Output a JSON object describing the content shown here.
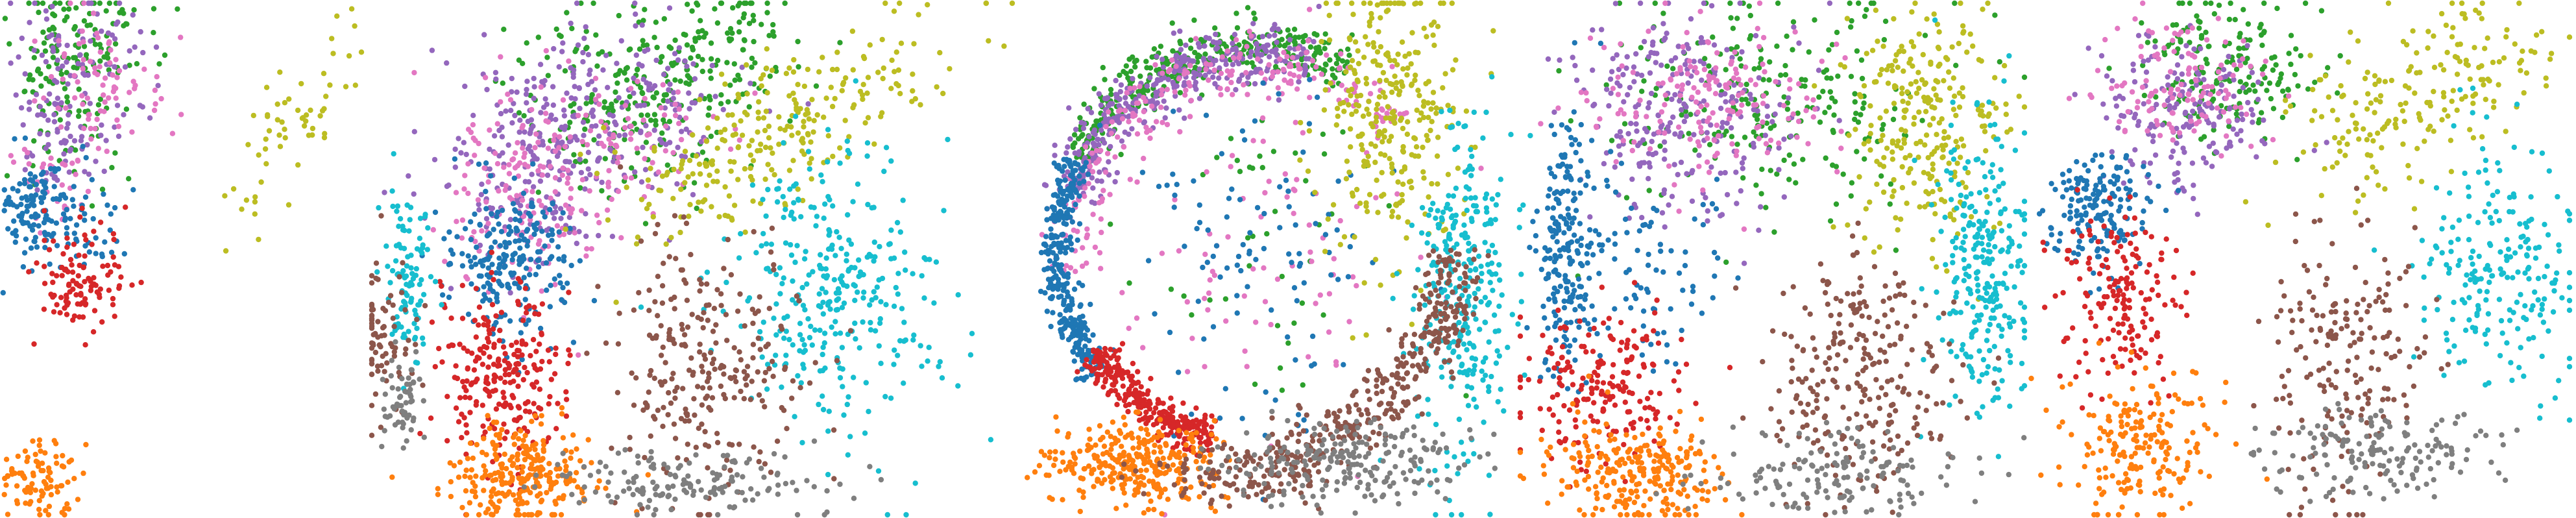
{
  "chart_data": [
    {
      "type": "scatter",
      "title": "",
      "xlabel": "",
      "ylabel": "",
      "grid": false,
      "legend": "none",
      "axes_visible": false,
      "palette": [
        "#1f77b4",
        "#ff7f0e",
        "#2ca02c",
        "#d62728",
        "#9467bd",
        "#8c564b",
        "#e377c2",
        "#7f7f7f",
        "#bcbd22",
        "#17becf"
      ],
      "series": [
        {
          "color": "#2ca02c",
          "seed": 11,
          "clusters": [
            {
              "cx": 0.22,
              "cy": 0.06,
              "sx": 0.1,
              "sy": 0.05,
              "n": 90
            },
            {
              "cx": 0.18,
              "cy": 0.2,
              "sx": 0.06,
              "sy": 0.08,
              "n": 70
            }
          ]
        },
        {
          "color": "#9467bd",
          "seed": 12,
          "clusters": [
            {
              "cx": 0.2,
              "cy": 0.14,
              "sx": 0.1,
              "sy": 0.08,
              "n": 110
            },
            {
              "cx": 0.16,
              "cy": 0.28,
              "sx": 0.05,
              "sy": 0.05,
              "n": 40
            }
          ]
        },
        {
          "color": "#e377c2",
          "seed": 13,
          "clusters": [
            {
              "cx": 0.24,
              "cy": 0.16,
              "sx": 0.1,
              "sy": 0.07,
              "n": 80
            },
            {
              "cx": 0.14,
              "cy": 0.36,
              "sx": 0.06,
              "sy": 0.04,
              "n": 30
            }
          ]
        },
        {
          "color": "#1f77b4",
          "seed": 14,
          "clusters": [
            {
              "cx": 0.08,
              "cy": 0.4,
              "sx": 0.06,
              "sy": 0.05,
              "n": 110
            },
            {
              "cx": 0.2,
              "cy": 0.44,
              "sx": 0.08,
              "sy": 0.05,
              "n": 60
            }
          ]
        },
        {
          "color": "#d62728",
          "seed": 15,
          "clusters": [
            {
              "cx": 0.22,
              "cy": 0.54,
              "sx": 0.07,
              "sy": 0.06,
              "n": 110
            }
          ]
        },
        {
          "color": "#bcbd22",
          "seed": 16,
          "clusters": [
            {
              "cx": 0.8,
              "cy": 0.24,
              "sx": 0.14,
              "sy": 0.05,
              "n": 60,
              "rot": -0.9
            }
          ]
        },
        {
          "color": "#ff7f0e",
          "seed": 17,
          "clusters": [
            {
              "cx": 0.1,
              "cy": 0.93,
              "sx": 0.06,
              "sy": 0.05,
              "n": 100
            }
          ]
        }
      ]
    },
    {
      "type": "scatter",
      "title": "",
      "xlabel": "",
      "ylabel": "",
      "grid": false,
      "legend": "none",
      "axes_visible": false,
      "series": [
        {
          "color": "#2ca02c",
          "seed": 21,
          "clusters": [
            {
              "cx": 0.38,
              "cy": 0.18,
              "sx": 0.1,
              "sy": 0.1,
              "n": 220
            },
            {
              "cx": 0.54,
              "cy": 0.08,
              "sx": 0.06,
              "sy": 0.06,
              "n": 80
            }
          ]
        },
        {
          "color": "#9467bd",
          "seed": 22,
          "clusters": [
            {
              "cx": 0.22,
              "cy": 0.3,
              "sx": 0.08,
              "sy": 0.1,
              "n": 240
            },
            {
              "cx": 0.4,
              "cy": 0.2,
              "sx": 0.08,
              "sy": 0.08,
              "n": 120
            }
          ]
        },
        {
          "color": "#e377c2",
          "seed": 23,
          "clusters": [
            {
              "cx": 0.2,
              "cy": 0.36,
              "sx": 0.07,
              "sy": 0.1,
              "n": 150
            },
            {
              "cx": 0.36,
              "cy": 0.26,
              "sx": 0.08,
              "sy": 0.07,
              "n": 80
            }
          ]
        },
        {
          "color": "#1f77b4",
          "seed": 24,
          "clusters": [
            {
              "cx": 0.17,
              "cy": 0.5,
              "sx": 0.05,
              "sy": 0.07,
              "n": 220
            }
          ]
        },
        {
          "color": "#d62728",
          "seed": 25,
          "clusters": [
            {
              "cx": 0.16,
              "cy": 0.72,
              "sx": 0.05,
              "sy": 0.09,
              "n": 240
            }
          ]
        },
        {
          "color": "#ff7f0e",
          "seed": 26,
          "clusters": [
            {
              "cx": 0.2,
              "cy": 0.92,
              "sx": 0.06,
              "sy": 0.05,
              "n": 260
            }
          ]
        },
        {
          "color": "#bcbd22",
          "seed": 27,
          "clusters": [
            {
              "cx": 0.62,
              "cy": 0.24,
              "sx": 0.16,
              "sy": 0.06,
              "n": 260,
              "rot": -0.6
            }
          ]
        },
        {
          "color": "#17becf",
          "seed": 28,
          "clusters": [
            {
              "cx": 0.72,
              "cy": 0.56,
              "sx": 0.09,
              "sy": 0.14,
              "n": 320
            },
            {
              "cx": 0.01,
              "cy": 0.54,
              "sx": 0.02,
              "sy": 0.08,
              "n": 100
            }
          ]
        },
        {
          "color": "#8c564b",
          "seed": 29,
          "clusters": [
            {
              "cx": 0.5,
              "cy": 0.72,
              "sx": 0.08,
              "sy": 0.12,
              "n": 260
            },
            {
              "cx": -0.03,
              "cy": 0.66,
              "sx": 0.025,
              "sy": 0.08,
              "n": 80
            }
          ]
        },
        {
          "color": "#7f7f7f",
          "seed": 30,
          "clusters": [
            {
              "cx": 0.48,
              "cy": 0.94,
              "sx": 0.12,
              "sy": 0.03,
              "n": 150
            },
            {
              "cx": 0.0,
              "cy": 0.78,
              "sx": 0.02,
              "sy": 0.04,
              "n": 60
            }
          ]
        }
      ]
    },
    {
      "type": "scatter",
      "title": "",
      "xlabel": "",
      "ylabel": "",
      "grid": false,
      "legend": "none",
      "axes_visible": false,
      "series": [
        {
          "color": "#2ca02c",
          "seed": 31,
          "clusters": [
            {
              "ring": true,
              "cx": 0.44,
              "cy": 0.48,
              "r": 0.4,
              "width": 0.05,
              "a0": 3.6,
              "a1": 5.2,
              "n": 340
            },
            {
              "cx": 0.44,
              "cy": 0.45,
              "sx": 0.16,
              "sy": 0.18,
              "n": 50
            }
          ]
        },
        {
          "color": "#9467bd",
          "seed": 32,
          "clusters": [
            {
              "ring": true,
              "cx": 0.44,
              "cy": 0.48,
              "r": 0.38,
              "width": 0.06,
              "a0": 3.4,
              "a1": 5.0,
              "n": 360
            }
          ]
        },
        {
          "color": "#e377c2",
          "seed": 33,
          "clusters": [
            {
              "ring": true,
              "cx": 0.44,
              "cy": 0.48,
              "r": 0.36,
              "width": 0.06,
              "a0": 3.0,
              "a1": 5.6,
              "n": 220
            },
            {
              "cx": 0.44,
              "cy": 0.46,
              "sx": 0.16,
              "sy": 0.18,
              "n": 90
            }
          ]
        },
        {
          "color": "#1f77b4",
          "seed": 34,
          "clusters": [
            {
              "ring": true,
              "cx": 0.44,
              "cy": 0.48,
              "r": 0.4,
              "width": 0.035,
              "a0": 2.5,
              "a1": 3.6,
              "n": 320
            },
            {
              "cx": 0.44,
              "cy": 0.5,
              "sx": 0.14,
              "sy": 0.16,
              "n": 110
            }
          ]
        },
        {
          "color": "#d62728",
          "seed": 35,
          "clusters": [
            {
              "ring": true,
              "cx": 0.44,
              "cy": 0.48,
              "r": 0.38,
              "width": 0.04,
              "a0": 1.8,
              "a1": 2.6,
              "n": 280
            }
          ]
        },
        {
          "color": "#ff7f0e",
          "seed": 36,
          "clusters": [
            {
              "cx": 0.2,
              "cy": 0.9,
              "sx": 0.09,
              "sy": 0.04,
              "n": 300
            }
          ]
        },
        {
          "color": "#bcbd22",
          "seed": 37,
          "clusters": [
            {
              "cx": 0.72,
              "cy": 0.22,
              "sx": 0.07,
              "sy": 0.14,
              "n": 300
            }
          ]
        },
        {
          "color": "#17becf",
          "seed": 38,
          "clusters": [
            {
              "cx": 0.86,
              "cy": 0.56,
              "sx": 0.05,
              "sy": 0.16,
              "n": 300
            }
          ]
        },
        {
          "color": "#8c564b",
          "seed": 39,
          "clusters": [
            {
              "ring": true,
              "cx": 0.44,
              "cy": 0.48,
              "r": 0.4,
              "width": 0.06,
              "a0": 0.0,
              "a1": 1.5,
              "n": 330
            },
            {
              "cx": 0.42,
              "cy": 0.92,
              "sx": 0.1,
              "sy": 0.03,
              "n": 120
            }
          ]
        },
        {
          "color": "#7f7f7f",
          "seed": 40,
          "clusters": [
            {
              "cx": 0.62,
              "cy": 0.9,
              "sx": 0.12,
              "sy": 0.04,
              "n": 220
            }
          ]
        }
      ]
    },
    {
      "type": "scatter",
      "title": "",
      "xlabel": "",
      "ylabel": "",
      "grid": false,
      "legend": "none",
      "axes_visible": false,
      "series": [
        {
          "color": "#2ca02c",
          "seed": 41,
          "clusters": [
            {
              "cx": 0.48,
              "cy": 0.2,
              "sx": 0.16,
              "sy": 0.12,
              "n": 230
            }
          ]
        },
        {
          "color": "#9467bd",
          "seed": 42,
          "clusters": [
            {
              "cx": 0.28,
              "cy": 0.22,
              "sx": 0.12,
              "sy": 0.1,
              "n": 250
            }
          ]
        },
        {
          "color": "#e377c2",
          "seed": 43,
          "clusters": [
            {
              "cx": 0.34,
              "cy": 0.18,
              "sx": 0.12,
              "sy": 0.08,
              "n": 170
            }
          ]
        },
        {
          "color": "#1f77b4",
          "seed": 44,
          "clusters": [
            {
              "cx": 0.04,
              "cy": 0.46,
              "sx": 0.03,
              "sy": 0.12,
              "n": 200
            },
            {
              "cx": 0.22,
              "cy": 0.52,
              "sx": 0.1,
              "sy": 0.09,
              "n": 90
            }
          ]
        },
        {
          "color": "#d62728",
          "seed": 45,
          "clusters": [
            {
              "cx": 0.12,
              "cy": 0.74,
              "sx": 0.08,
              "sy": 0.07,
              "n": 200
            }
          ]
        },
        {
          "color": "#ff7f0e",
          "seed": 46,
          "clusters": [
            {
              "cx": 0.2,
              "cy": 0.92,
              "sx": 0.09,
              "sy": 0.05,
              "n": 250
            }
          ]
        },
        {
          "color": "#bcbd22",
          "seed": 47,
          "clusters": [
            {
              "cx": 0.8,
              "cy": 0.22,
              "sx": 0.08,
              "sy": 0.12,
              "n": 260
            }
          ]
        },
        {
          "color": "#17becf",
          "seed": 48,
          "clusters": [
            {
              "cx": 0.92,
              "cy": 0.52,
              "sx": 0.05,
              "sy": 0.14,
              "n": 260
            }
          ]
        },
        {
          "color": "#8c564b",
          "seed": 49,
          "clusters": [
            {
              "cx": 0.66,
              "cy": 0.72,
              "sx": 0.1,
              "sy": 0.12,
              "n": 260
            }
          ]
        },
        {
          "color": "#7f7f7f",
          "seed": 50,
          "clusters": [
            {
              "cx": 0.6,
              "cy": 0.92,
              "sx": 0.14,
              "sy": 0.04,
              "n": 150
            }
          ]
        }
      ]
    },
    {
      "type": "scatter",
      "title": "",
      "xlabel": "",
      "ylabel": "",
      "grid": false,
      "legend": "none",
      "axes_visible": false,
      "series": [
        {
          "color": "#2ca02c",
          "seed": 51,
          "clusters": [
            {
              "cx": 0.32,
              "cy": 0.12,
              "sx": 0.08,
              "sy": 0.07,
              "n": 180
            }
          ]
        },
        {
          "color": "#9467bd",
          "seed": 52,
          "clusters": [
            {
              "cx": 0.26,
              "cy": 0.22,
              "sx": 0.08,
              "sy": 0.08,
              "n": 180
            }
          ]
        },
        {
          "color": "#e377c2",
          "seed": 53,
          "clusters": [
            {
              "cx": 0.24,
              "cy": 0.16,
              "sx": 0.08,
              "sy": 0.06,
              "n": 120
            }
          ]
        },
        {
          "color": "#1f77b4",
          "seed": 54,
          "clusters": [
            {
              "cx": 0.08,
              "cy": 0.4,
              "sx": 0.05,
              "sy": 0.06,
              "n": 170
            }
          ]
        },
        {
          "color": "#d62728",
          "seed": 55,
          "clusters": [
            {
              "cx": 0.12,
              "cy": 0.58,
              "sx": 0.06,
              "sy": 0.09,
              "n": 170
            }
          ]
        },
        {
          "color": "#ff7f0e",
          "seed": 56,
          "clusters": [
            {
              "cx": 0.16,
              "cy": 0.86,
              "sx": 0.07,
              "sy": 0.07,
              "n": 200
            }
          ]
        },
        {
          "color": "#bcbd22",
          "seed": 57,
          "clusters": [
            {
              "cx": 0.7,
              "cy": 0.18,
              "sx": 0.14,
              "sy": 0.07,
              "n": 200,
              "rot": -0.5
            }
          ]
        },
        {
          "color": "#17becf",
          "seed": 58,
          "clusters": [
            {
              "cx": 0.86,
              "cy": 0.52,
              "sx": 0.08,
              "sy": 0.12,
              "n": 210
            }
          ]
        },
        {
          "color": "#8c564b",
          "seed": 59,
          "clusters": [
            {
              "cx": 0.56,
              "cy": 0.7,
              "sx": 0.08,
              "sy": 0.13,
              "n": 190
            }
          ]
        },
        {
          "color": "#7f7f7f",
          "seed": 60,
          "clusters": [
            {
              "cx": 0.62,
              "cy": 0.88,
              "sx": 0.12,
              "sy": 0.05,
              "n": 160
            }
          ]
        }
      ]
    }
  ]
}
